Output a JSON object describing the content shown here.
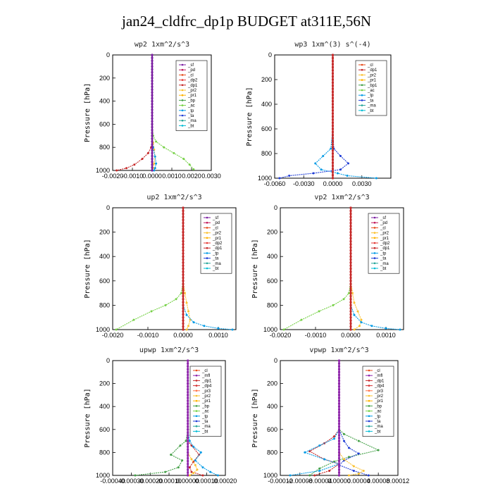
{
  "figure": {
    "title": "jan24_cldfrc_dp1p  BUDGET at311E,56N"
  },
  "colors": {
    "sf": "#7b1fa2",
    "pd": "#c2185b",
    "cl": "#e64a19",
    "dp1": "#c62828",
    "dp2": "#e53935",
    "pr1": "#ffb300",
    "pr2": "#fbc02d",
    "bp1": "#43a047",
    "bp": "#43a047",
    "ac": "#76d146",
    "tp": "#039be5",
    "ta": "#1e3cd6",
    "ma": "#26a69a",
    "bt": "#00bcd4",
    "mfl": "#8e24aa",
    "dp4": "#d32f2f",
    "pr3": "#ff7043",
    "pr4": "#ef6c00"
  },
  "chart_data": [
    {
      "type": "line",
      "title": "wp2  1xm^2/s^3",
      "ylabel": "Pressure  [hPa]",
      "ylim": [
        1000,
        0
      ],
      "yticks": [
        "0",
        "200",
        "400",
        "600",
        "800",
        "1000"
      ],
      "xlim": [
        -0.002,
        0.003
      ],
      "xticks": [
        "-0.0020",
        "-0.0010",
        "0.0000",
        "0.0010",
        "0.0020",
        "0.0030"
      ],
      "legend_position": "top-right",
      "legend": [
        "_sf",
        "_pd",
        "_cl",
        "_dp2",
        "_dp1",
        "_pr2",
        "_pr1",
        "_bp",
        "_ac",
        "_tp",
        "_ta",
        "_ma",
        "_bt"
      ],
      "series": [
        {
          "name": "_cl",
          "color_key": "dp1",
          "x": [
            0,
            0,
            0,
            0,
            0,
            0,
            -5e-05,
            -0.0002,
            -0.0005,
            -0.0009,
            -0.0013,
            -0.0018
          ],
          "y": [
            0,
            200,
            400,
            600,
            700,
            750,
            800,
            850,
            900,
            950,
            980,
            1000
          ]
        },
        {
          "name": "_dp2",
          "color_key": "pr2",
          "x": [
            0,
            0,
            0,
            0,
            0,
            5e-05,
            0.0001,
            0.00015,
            0.0001,
            5e-05,
            0
          ],
          "y": [
            0,
            200,
            400,
            600,
            700,
            760,
            820,
            880,
            940,
            980,
            1000
          ]
        },
        {
          "name": "_bp",
          "color_key": "ac",
          "x": [
            0,
            0,
            0,
            0,
            5e-05,
            0.0002,
            0.0006,
            0.0011,
            0.0016,
            0.0019,
            0.0021
          ],
          "y": [
            0,
            200,
            400,
            600,
            700,
            750,
            800,
            850,
            900,
            950,
            990
          ]
        },
        {
          "name": "_tp",
          "color_key": "tp",
          "x": [
            0,
            0,
            0,
            0,
            0,
            5e-05,
            0.00015,
            0.0002,
            0.00015,
            0.0001
          ],
          "y": [
            0,
            200,
            400,
            600,
            700,
            800,
            880,
            940,
            980,
            1000
          ]
        },
        {
          "name": "_sf",
          "color_key": "sf",
          "x": [
            0,
            0,
            0,
            0,
            0,
            0,
            0,
            0,
            0,
            0
          ],
          "y": [
            0,
            100,
            200,
            300,
            400,
            500,
            600,
            700,
            800,
            1000
          ]
        }
      ]
    },
    {
      "type": "line",
      "title": "wp3  1xm^(3) s^(-4)",
      "ylabel": "Pressure  [hPa]",
      "ylim": [
        1000,
        0
      ],
      "yticks": [
        "0",
        "200",
        "400",
        "600",
        "800",
        "1000"
      ],
      "xlim": [
        -0.006,
        0.006
      ],
      "xticks": [
        "-0.0060",
        "-0.0030",
        "0.0000",
        "0.0030"
      ],
      "legend_position": "top-right",
      "legend": [
        "_cl",
        "_dp1",
        "_pr2",
        "_pr1",
        "_bp1",
        "_ac",
        "_tp",
        "_ta",
        "_ma",
        "_bt"
      ],
      "series": [
        {
          "name": "_tp",
          "color_key": "tp",
          "x": [
            0,
            0,
            0,
            -0.0002,
            -0.001,
            -0.0018,
            -0.0012,
            0.0005,
            0.0015,
            0.0045
          ],
          "y": [
            0,
            200,
            600,
            760,
            820,
            880,
            930,
            960,
            980,
            1000
          ]
        },
        {
          "name": "_ta",
          "color_key": "ta",
          "x": [
            0,
            0,
            0,
            0.0001,
            0.0008,
            0.0016,
            0.0008,
            -0.002,
            -0.0045,
            -0.0055
          ],
          "y": [
            0,
            200,
            600,
            760,
            820,
            880,
            930,
            960,
            980,
            1000
          ]
        },
        {
          "name": "_dp1",
          "color_key": "dp1",
          "x": [
            0,
            0,
            0,
            0,
            0,
            0,
            0,
            0,
            0,
            0
          ],
          "y": [
            0,
            100,
            200,
            300,
            400,
            500,
            600,
            700,
            800,
            1000
          ]
        }
      ]
    },
    {
      "type": "line",
      "title": "up2  1xm^2/s^3",
      "ylabel": "Pressure  [hPa]",
      "ylim": [
        1000,
        0
      ],
      "yticks": [
        "0",
        "200",
        "400",
        "600",
        "800",
        "1000"
      ],
      "xlim": [
        -0.002,
        0.0015
      ],
      "xticks": [
        "-0.0020",
        "-0.0010",
        "0.0000",
        "0.0010"
      ],
      "legend_position": "top-right",
      "legend": [
        "_sf",
        "_pd",
        "_cl",
        "_pr2",
        "_pr1",
        "_dp2",
        "_dp1",
        "_tp",
        "_ta",
        "_ma",
        "_bt"
      ],
      "series": [
        {
          "name": "_dp1",
          "color_key": "ac",
          "x": [
            0,
            0,
            0,
            0,
            -5e-05,
            -0.0002,
            -0.0005,
            -0.0009,
            -0.0014,
            -0.0019
          ],
          "y": [
            0,
            200,
            400,
            600,
            700,
            750,
            800,
            850,
            920,
            1000
          ]
        },
        {
          "name": "_pr2",
          "color_key": "pr2",
          "x": [
            0,
            0,
            0,
            0,
            5e-05,
            0.0001,
            0.00015,
            0.0002,
            0.00015,
            0.0001
          ],
          "y": [
            0,
            200,
            400,
            600,
            700,
            780,
            850,
            920,
            970,
            1000
          ]
        },
        {
          "name": "_tp",
          "color_key": "tp",
          "x": [
            0,
            0,
            0,
            0,
            0,
            0.0001,
            0.0003,
            0.0006,
            0.001,
            0.0014
          ],
          "y": [
            0,
            200,
            400,
            600,
            800,
            880,
            940,
            970,
            990,
            1000
          ]
        },
        {
          "name": "_sf",
          "color_key": "dp1",
          "x": [
            0,
            0,
            0,
            0,
            0,
            0,
            0,
            0,
            0,
            0
          ],
          "y": [
            0,
            100,
            200,
            300,
            400,
            500,
            600,
            700,
            800,
            1000
          ]
        }
      ]
    },
    {
      "type": "line",
      "title": "vp2  1xm^2/s^3",
      "ylabel": "Pressure  [hPa]",
      "ylim": [
        1000,
        0
      ],
      "yticks": [
        "0",
        "200",
        "400",
        "600",
        "800",
        "1000"
      ],
      "xlim": [
        -0.002,
        0.0015
      ],
      "xticks": [
        "-0.0020",
        "-0.0010",
        "0.0000",
        "0.0010"
      ],
      "legend_position": "top-right",
      "legend": [
        "_sf",
        "_pd",
        "_cl",
        "_pr2",
        "_pr1",
        "_dp2",
        "_dp1",
        "_tp",
        "_ta",
        "_ma",
        "_bt"
      ],
      "series": [
        {
          "name": "_dp1",
          "color_key": "ac",
          "x": [
            0,
            0,
            0,
            0,
            -5e-05,
            -0.0002,
            -0.0005,
            -0.0009,
            -0.0014,
            -0.0019
          ],
          "y": [
            0,
            200,
            400,
            600,
            700,
            750,
            800,
            850,
            920,
            1000
          ]
        },
        {
          "name": "_pr2",
          "color_key": "pr2",
          "x": [
            0,
            0,
            0,
            0,
            5e-05,
            0.0001,
            0.0002,
            0.0003,
            0.00025,
            0.0001
          ],
          "y": [
            0,
            200,
            400,
            600,
            700,
            780,
            850,
            920,
            970,
            1000
          ]
        },
        {
          "name": "_tp",
          "color_key": "tp",
          "x": [
            0,
            0,
            0,
            0,
            0,
            0.0001,
            0.0003,
            0.0006,
            0.001,
            0.0014
          ],
          "y": [
            0,
            200,
            400,
            600,
            800,
            880,
            940,
            970,
            990,
            1000
          ]
        },
        {
          "name": "_sf",
          "color_key": "dp1",
          "x": [
            0,
            0,
            0,
            0,
            0,
            0,
            0,
            0,
            0,
            0
          ],
          "y": [
            0,
            100,
            200,
            300,
            400,
            500,
            600,
            700,
            800,
            1000
          ]
        }
      ]
    },
    {
      "type": "line",
      "title": "upwp  1xm^2/s^3",
      "ylabel": "Pressure  [hPa]",
      "ylim": [
        1000,
        0
      ],
      "yticks": [
        "0",
        "200",
        "400",
        "600",
        "800",
        "1000"
      ],
      "xlim": [
        -0.0004,
        0.0002
      ],
      "xticks": [
        "-0.00040",
        "-0.00030",
        "-0.00020",
        "-0.00010",
        "0.00000",
        "0.00010",
        "0.00020"
      ],
      "legend_position": "top-right",
      "legend": [
        "_cl",
        "_mfl",
        "_dp1",
        "_dp4",
        "_pr3",
        "_pr2",
        "_pr1",
        "_bp",
        "_ac",
        "_tp",
        "_ta",
        "_ma",
        "_bt"
      ],
      "series": [
        {
          "name": "_bp",
          "color_key": "bp",
          "x": [
            0,
            0,
            0,
            0,
            -1e-05,
            -4e-05,
            -9e-05,
            -3e-05,
            -5e-05,
            -0.00012,
            -0.00028
          ],
          "y": [
            0,
            200,
            400,
            600,
            700,
            740,
            820,
            870,
            930,
            970,
            1000
          ]
        },
        {
          "name": "_dp1",
          "color_key": "dp1",
          "x": [
            0,
            0,
            0,
            0,
            0,
            2e-05,
            6e-05,
            3e-05,
            1e-05,
            2e-05,
            8e-05
          ],
          "y": [
            0,
            200,
            400,
            600,
            700,
            740,
            820,
            880,
            930,
            970,
            1000
          ]
        },
        {
          "name": "_tp",
          "color_key": "tp",
          "x": [
            0,
            0,
            0,
            0,
            1e-05,
            3e-05,
            7e-05,
            4e-05,
            8e-05,
            0.00012,
            0.00016
          ],
          "y": [
            0,
            200,
            400,
            600,
            700,
            750,
            800,
            870,
            930,
            970,
            1000
          ]
        },
        {
          "name": "_pr2",
          "color_key": "pr2",
          "x": [
            0,
            0,
            0,
            0,
            0,
            0,
            2e-05,
            4e-05,
            5e-05,
            3e-05,
            1e-05
          ],
          "y": [
            0,
            200,
            400,
            600,
            700,
            800,
            860,
            910,
            950,
            980,
            1000
          ]
        },
        {
          "name": "_mfl",
          "color_key": "mfl",
          "x": [
            0,
            0,
            0,
            0,
            0,
            0,
            0,
            0,
            0,
            0
          ],
          "y": [
            0,
            100,
            200,
            300,
            400,
            500,
            600,
            700,
            800,
            1000
          ]
        }
      ]
    },
    {
      "type": "line",
      "title": "vpwp  1xm^2/s^3",
      "ylabel": "Pressure  [hPa]",
      "ylim": [
        1000,
        0
      ],
      "yticks": [
        "0",
        "200",
        "400",
        "600",
        "800",
        "1000"
      ],
      "xlim": [
        -0.00012,
        0.00012
      ],
      "xticks": [
        "-0.00012",
        "-0.00008",
        "-0.00004",
        "0.00000",
        "0.00004",
        "0.00008",
        "0.00012"
      ],
      "legend_position": "top-right",
      "legend": [
        "_cl",
        "_mfl",
        "_dp1",
        "_dp4",
        "_pr3",
        "_pr2",
        "_pr1",
        "_bp",
        "_ac",
        "_tp",
        "_ta",
        "_ma",
        "_bt"
      ],
      "series": [
        {
          "name": "_bp",
          "color_key": "bp",
          "x": [
            0,
            0,
            0,
            0,
            1e-05,
            4e-05,
            8e-05,
            2e-05,
            -1e-05,
            -4e-05,
            -6e-05
          ],
          "y": [
            0,
            200,
            400,
            600,
            640,
            700,
            780,
            840,
            880,
            940,
            1000
          ]
        },
        {
          "name": "_dp1",
          "color_key": "dp1",
          "x": [
            0,
            0,
            0,
            0,
            -1e-05,
            -3e-05,
            -6e-05,
            -3e-05,
            0,
            -2e-05,
            -5e-05
          ],
          "y": [
            0,
            200,
            400,
            600,
            660,
            720,
            790,
            860,
            900,
            960,
            1000
          ]
        },
        {
          "name": "_tp",
          "color_key": "tp",
          "x": [
            0,
            0,
            0,
            0,
            -1e-05,
            -4e-05,
            -7e-05,
            -3e-05,
            0,
            -4e-05,
            -0.0001
          ],
          "y": [
            0,
            200,
            400,
            600,
            680,
            740,
            800,
            860,
            900,
            960,
            1000
          ]
        },
        {
          "name": "_ta",
          "color_key": "ta",
          "x": [
            0,
            0,
            0,
            0,
            1e-05,
            2e-05,
            4e-05,
            1e-05,
            0,
            3e-05,
            6e-05
          ],
          "y": [
            0,
            200,
            400,
            600,
            700,
            760,
            810,
            870,
            910,
            960,
            1000
          ]
        },
        {
          "name": "_pr2",
          "color_key": "pr2",
          "x": [
            0,
            0,
            0,
            0,
            0,
            0,
            1e-05,
            3e-05,
            5e-05,
            4e-05,
            2e-05
          ],
          "y": [
            0,
            200,
            400,
            600,
            700,
            800,
            860,
            920,
            960,
            985,
            1000
          ]
        },
        {
          "name": "_mfl",
          "color_key": "mfl",
          "x": [
            0,
            0,
            0,
            0,
            0,
            0,
            0,
            0,
            0,
            0
          ],
          "y": [
            0,
            100,
            200,
            300,
            400,
            500,
            600,
            700,
            800,
            1000
          ]
        }
      ]
    }
  ]
}
